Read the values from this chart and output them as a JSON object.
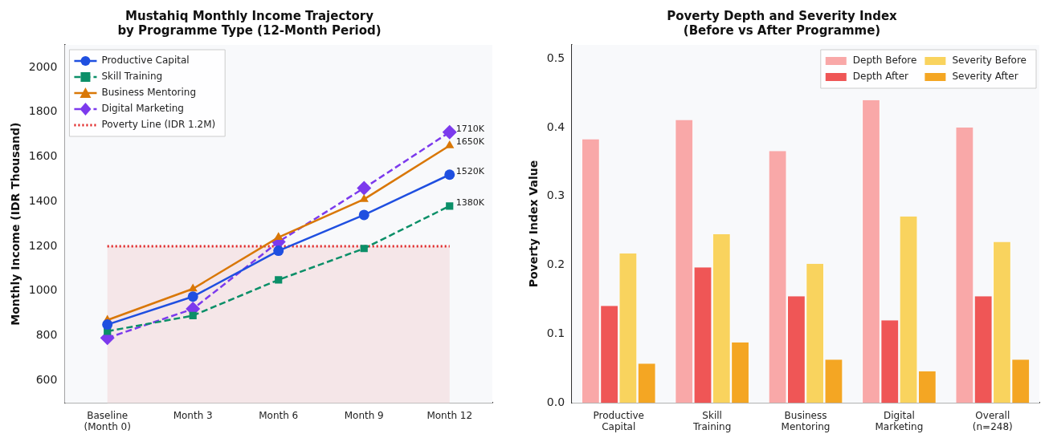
{
  "chart_data": [
    {
      "type": "line",
      "title": "Mustahiq Monthly Income Trajectory\nby Programme Type (12-Month Period)",
      "ylabel": "Monthly Income (IDR Thousand)",
      "categories": [
        "Baseline\n(Month 0)",
        "Month 3",
        "Month 6",
        "Month 9",
        "Month 12"
      ],
      "series": [
        {
          "name": "Productive Capital",
          "color": "#1f4fe0",
          "marker": "circle",
          "line_style": "solid",
          "values": [
            850,
            975,
            1180,
            1340,
            1520
          ]
        },
        {
          "name": "Skill Training",
          "color": "#0b8f68",
          "marker": "square",
          "line_style": "dashed",
          "values": [
            820,
            890,
            1050,
            1190,
            1380
          ]
        },
        {
          "name": "Business Mentoring",
          "color": "#d97706",
          "marker": "triangle",
          "line_style": "solid",
          "values": [
            870,
            1010,
            1240,
            1410,
            1650
          ]
        },
        {
          "name": "Digital Marketing",
          "color": "#7c3aed",
          "marker": "diamond",
          "line_style": "dashed",
          "values": [
            790,
            920,
            1220,
            1460,
            1710
          ]
        }
      ],
      "ref_lines": [
        {
          "axis": "y",
          "value": 1200,
          "label": "Poverty Line (IDR 1.2M)",
          "color": "#e02424",
          "line_style": "dotted"
        }
      ],
      "bands": [
        {
          "axis": "y",
          "from": 500,
          "to": 1200,
          "color": "#f5e6e8"
        }
      ],
      "annotations": [
        {
          "text": "1710K",
          "x": "Month 12",
          "y": 1710
        },
        {
          "text": "1650K",
          "x": "Month 12",
          "y": 1650
        },
        {
          "text": "1520K",
          "x": "Month 12",
          "y": 1520
        },
        {
          "text": "1380K",
          "x": "Month 12",
          "y": 1380
        }
      ],
      "ylim": [
        500,
        2100
      ],
      "yticks": [
        600,
        800,
        1000,
        1200,
        1400,
        1600,
        1800,
        2000
      ],
      "grid": false,
      "legend": "top left"
    },
    {
      "type": "bar",
      "title": "Poverty Depth and Severity Index\n(Before vs After Programme)",
      "ylabel": "Poverty Index Value",
      "categories": [
        "Productive\nCapital",
        "Skill\nTraining",
        "Business\nMentoring",
        "Digital\nMarketing",
        "Overall\n(n=248)"
      ],
      "series": [
        {
          "name": "Depth Before",
          "color": "#f9a8a8",
          "values": [
            0.383,
            0.411,
            0.366,
            0.44,
            0.4
          ]
        },
        {
          "name": "Depth After",
          "color": "#ef5656",
          "values": [
            0.141,
            0.197,
            0.155,
            0.12,
            0.155
          ]
        },
        {
          "name": "Severity Before",
          "color": "#f9d35e",
          "values": [
            0.217,
            0.245,
            0.202,
            0.271,
            0.234
          ]
        },
        {
          "name": "Severity After",
          "color": "#f4a623",
          "values": [
            0.057,
            0.088,
            0.063,
            0.046,
            0.063
          ]
        }
      ],
      "ylim": [
        0,
        0.52
      ],
      "yticks": [
        {
          "value": 0,
          "label": "0.0"
        },
        {
          "value": 0.1,
          "label": "0.1"
        },
        {
          "value": 0.2,
          "label": "0.2"
        },
        {
          "value": 0.3,
          "label": "0.3"
        },
        {
          "value": 0.4,
          "label": "0.4"
        },
        {
          "value": 0.5,
          "label": "0.5"
        }
      ],
      "grid": false,
      "legend": "top right"
    }
  ]
}
